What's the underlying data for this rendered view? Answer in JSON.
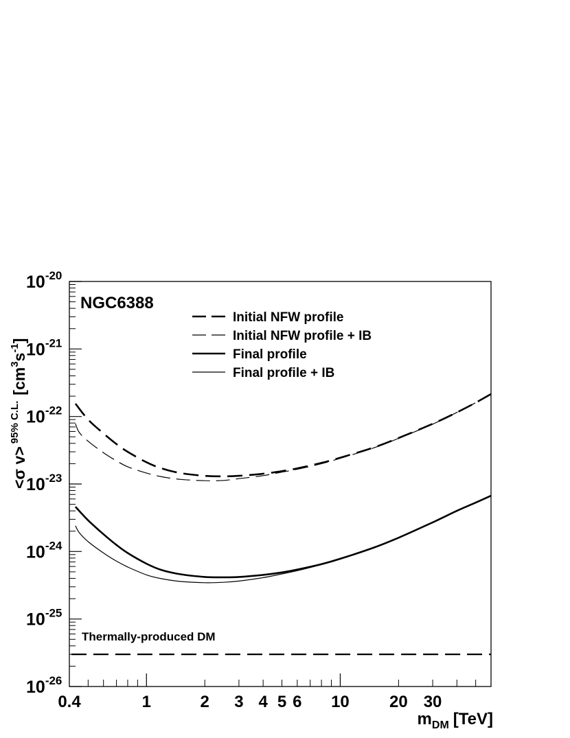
{
  "chart_data": {
    "type": "line",
    "title": "NGC6388",
    "xlabel": {
      "main": "m",
      "sub": "DM",
      "unit": "[TeV]"
    },
    "ylabel": {
      "pre": "<σ v>",
      "sup": "95% C.L.",
      "unit_pre": "[cm",
      "unit_sup1": "3",
      "unit_mid": "s",
      "unit_sup2": "-1",
      "unit_post": "]"
    },
    "xscale": "log",
    "yscale": "log",
    "xlim": [
      0.4,
      60
    ],
    "ylim": [
      1e-26,
      1e-20
    ],
    "grid": false,
    "legend_position": "top-right",
    "x_tick_labels": [
      {
        "value": 0.4,
        "text": "0.4"
      },
      {
        "value": 1,
        "text": "1"
      },
      {
        "value": 2,
        "text": "2"
      },
      {
        "value": 3,
        "text": "3"
      },
      {
        "value": 4,
        "text": "4"
      },
      {
        "value": 5,
        "text": "5"
      },
      {
        "value": 6,
        "text": "6"
      },
      {
        "value": 10,
        "text": "10"
      },
      {
        "value": 20,
        "text": "20"
      },
      {
        "value": 30,
        "text": "30"
      }
    ],
    "y_tick_labels": [
      {
        "exp": -20,
        "base": "10",
        "sup": "-20"
      },
      {
        "exp": -21,
        "base": "10",
        "sup": "-21"
      },
      {
        "exp": -22,
        "base": "10",
        "sup": "-22"
      },
      {
        "exp": -23,
        "base": "10",
        "sup": "-23"
      },
      {
        "exp": -24,
        "base": "10",
        "sup": "-24"
      },
      {
        "exp": -25,
        "base": "10",
        "sup": "-25"
      },
      {
        "exp": -26,
        "base": "10",
        "sup": "-26"
      }
    ],
    "series": [
      {
        "name": "Initial NFW profile",
        "style": "long-dash",
        "width": 2.6,
        "points": [
          [
            0.43,
            1.55e-22
          ],
          [
            0.5,
            9e-23
          ],
          [
            0.6,
            5.6e-23
          ],
          [
            0.7,
            3.9e-23
          ],
          [
            0.8,
            3e-23
          ],
          [
            1.0,
            2.1e-23
          ],
          [
            1.2,
            1.7e-23
          ],
          [
            1.5,
            1.45e-23
          ],
          [
            2.0,
            1.32e-23
          ],
          [
            2.5,
            1.3e-23
          ],
          [
            3.0,
            1.32e-23
          ],
          [
            4.0,
            1.42e-23
          ],
          [
            5.0,
            1.55e-23
          ],
          [
            6.0,
            1.7e-23
          ],
          [
            8.0,
            2.05e-23
          ],
          [
            10,
            2.45e-23
          ],
          [
            15,
            3.5e-23
          ],
          [
            20,
            4.8e-23
          ],
          [
            30,
            7.8e-23
          ],
          [
            40,
            1.15e-22
          ],
          [
            50,
            1.6e-22
          ],
          [
            60,
            2.15e-22
          ]
        ]
      },
      {
        "name": "Initial NFW profile + IB",
        "style": "long-dash",
        "width": 1.2,
        "points": [
          [
            0.43,
            7.8e-23
          ],
          [
            0.45,
            5.8e-23
          ],
          [
            0.5,
            4.3e-23
          ],
          [
            0.6,
            2.9e-23
          ],
          [
            0.7,
            2.2e-23
          ],
          [
            0.8,
            1.8e-23
          ],
          [
            1.0,
            1.45e-23
          ],
          [
            1.2,
            1.28e-23
          ],
          [
            1.5,
            1.17e-23
          ],
          [
            2.0,
            1.12e-23
          ],
          [
            2.5,
            1.13e-23
          ],
          [
            3.0,
            1.2e-23
          ],
          [
            4.0,
            1.33e-23
          ],
          [
            5.0,
            1.5e-23
          ],
          [
            6.0,
            1.65e-23
          ],
          [
            8.0,
            2e-23
          ],
          [
            10,
            2.4e-23
          ],
          [
            15,
            3.45e-23
          ],
          [
            20,
            4.75e-23
          ],
          [
            30,
            7.7e-23
          ],
          [
            40,
            1.15e-22
          ],
          [
            50,
            1.6e-22
          ],
          [
            60,
            2.15e-22
          ]
        ]
      },
      {
        "name": "Final profile",
        "style": "solid",
        "width": 2.6,
        "points": [
          [
            0.43,
            4.6e-24
          ],
          [
            0.5,
            2.9e-24
          ],
          [
            0.6,
            1.8e-24
          ],
          [
            0.7,
            1.25e-24
          ],
          [
            0.8,
            9.5e-25
          ],
          [
            1.0,
            6.6e-25
          ],
          [
            1.2,
            5.3e-25
          ],
          [
            1.5,
            4.6e-25
          ],
          [
            2.0,
            4.2e-25
          ],
          [
            2.5,
            4.15e-25
          ],
          [
            3.0,
            4.2e-25
          ],
          [
            4.0,
            4.5e-25
          ],
          [
            5.0,
            4.9e-25
          ],
          [
            6.0,
            5.4e-25
          ],
          [
            8.0,
            6.5e-25
          ],
          [
            10,
            7.8e-25
          ],
          [
            15,
            1.15e-24
          ],
          [
            20,
            1.6e-24
          ],
          [
            30,
            2.7e-24
          ],
          [
            40,
            4e-24
          ],
          [
            50,
            5.3e-24
          ],
          [
            60,
            6.7e-24
          ]
        ]
      },
      {
        "name": "Final profile + IB",
        "style": "solid",
        "width": 1.2,
        "points": [
          [
            0.43,
            2.4e-24
          ],
          [
            0.45,
            1.9e-24
          ],
          [
            0.5,
            1.4e-24
          ],
          [
            0.6,
            9.5e-25
          ],
          [
            0.7,
            7.2e-25
          ],
          [
            0.8,
            5.9e-25
          ],
          [
            1.0,
            4.5e-25
          ],
          [
            1.2,
            3.95e-25
          ],
          [
            1.5,
            3.6e-25
          ],
          [
            2.0,
            3.45e-25
          ],
          [
            2.5,
            3.5e-25
          ],
          [
            3.0,
            3.65e-25
          ],
          [
            4.0,
            4.1e-25
          ],
          [
            5.0,
            4.65e-25
          ],
          [
            6.0,
            5.2e-25
          ],
          [
            8.0,
            6.4e-25
          ],
          [
            10,
            7.7e-25
          ],
          [
            15,
            1.15e-24
          ],
          [
            20,
            1.6e-24
          ],
          [
            30,
            2.7e-24
          ],
          [
            40,
            4e-24
          ],
          [
            50,
            5.3e-24
          ],
          [
            60,
            6.7e-24
          ]
        ]
      },
      {
        "name": "",
        "style": "long-dash",
        "width": 2.2,
        "points": [
          [
            0.41,
            3e-26
          ],
          [
            60,
            3e-26
          ]
        ]
      }
    ],
    "annotations": [
      {
        "text": "Thermally-produced DM"
      }
    ]
  }
}
